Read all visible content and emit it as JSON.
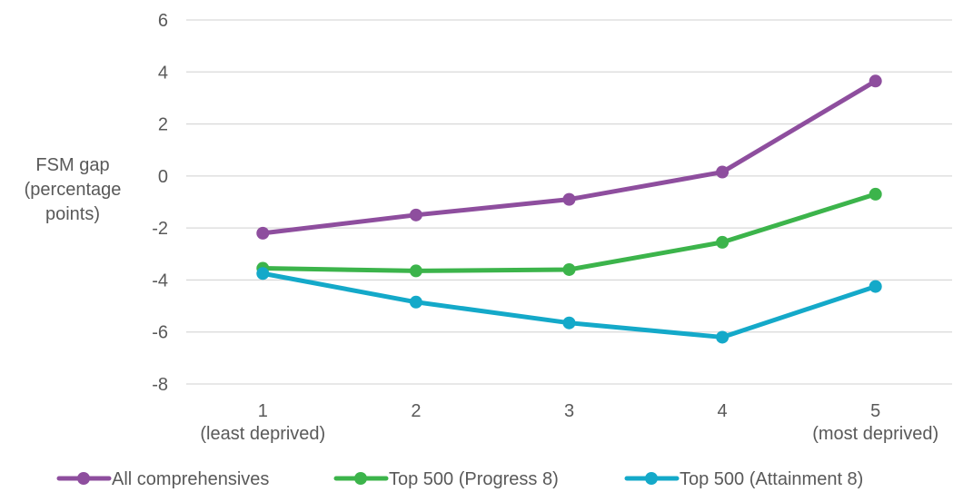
{
  "chart_data": {
    "type": "line",
    "title": "",
    "ylabel_lines": [
      "FSM gap",
      "(percentage",
      "points)"
    ],
    "xlabel": "",
    "categories": [
      [
        "1",
        "(least deprived)"
      ],
      [
        "2"
      ],
      [
        "3"
      ],
      [
        "4"
      ],
      [
        "5",
        "(most deprived)"
      ]
    ],
    "ylim": [
      -8,
      6
    ],
    "yticks": [
      -8,
      -6,
      -4,
      -2,
      0,
      2,
      4,
      6
    ],
    "ytick_labels": [
      "-8",
      "-6",
      "-4",
      "-2",
      "0",
      "2",
      "4",
      "6"
    ],
    "grid": "horizontal",
    "legend": "bottom",
    "series": [
      {
        "name": "All comprehensives",
        "color": "#8e4e9e",
        "values": [
          -2.2,
          -1.5,
          -0.9,
          0.15,
          3.65
        ]
      },
      {
        "name": "Top 500 (Progress 8)",
        "color": "#3cb44b",
        "values": [
          -3.55,
          -3.65,
          -3.6,
          -2.55,
          -0.7
        ]
      },
      {
        "name": "Top 500 (Attainment 8)",
        "color": "#14a9c9",
        "values": [
          -3.75,
          -4.85,
          -5.65,
          -6.2,
          -4.25
        ]
      }
    ]
  }
}
